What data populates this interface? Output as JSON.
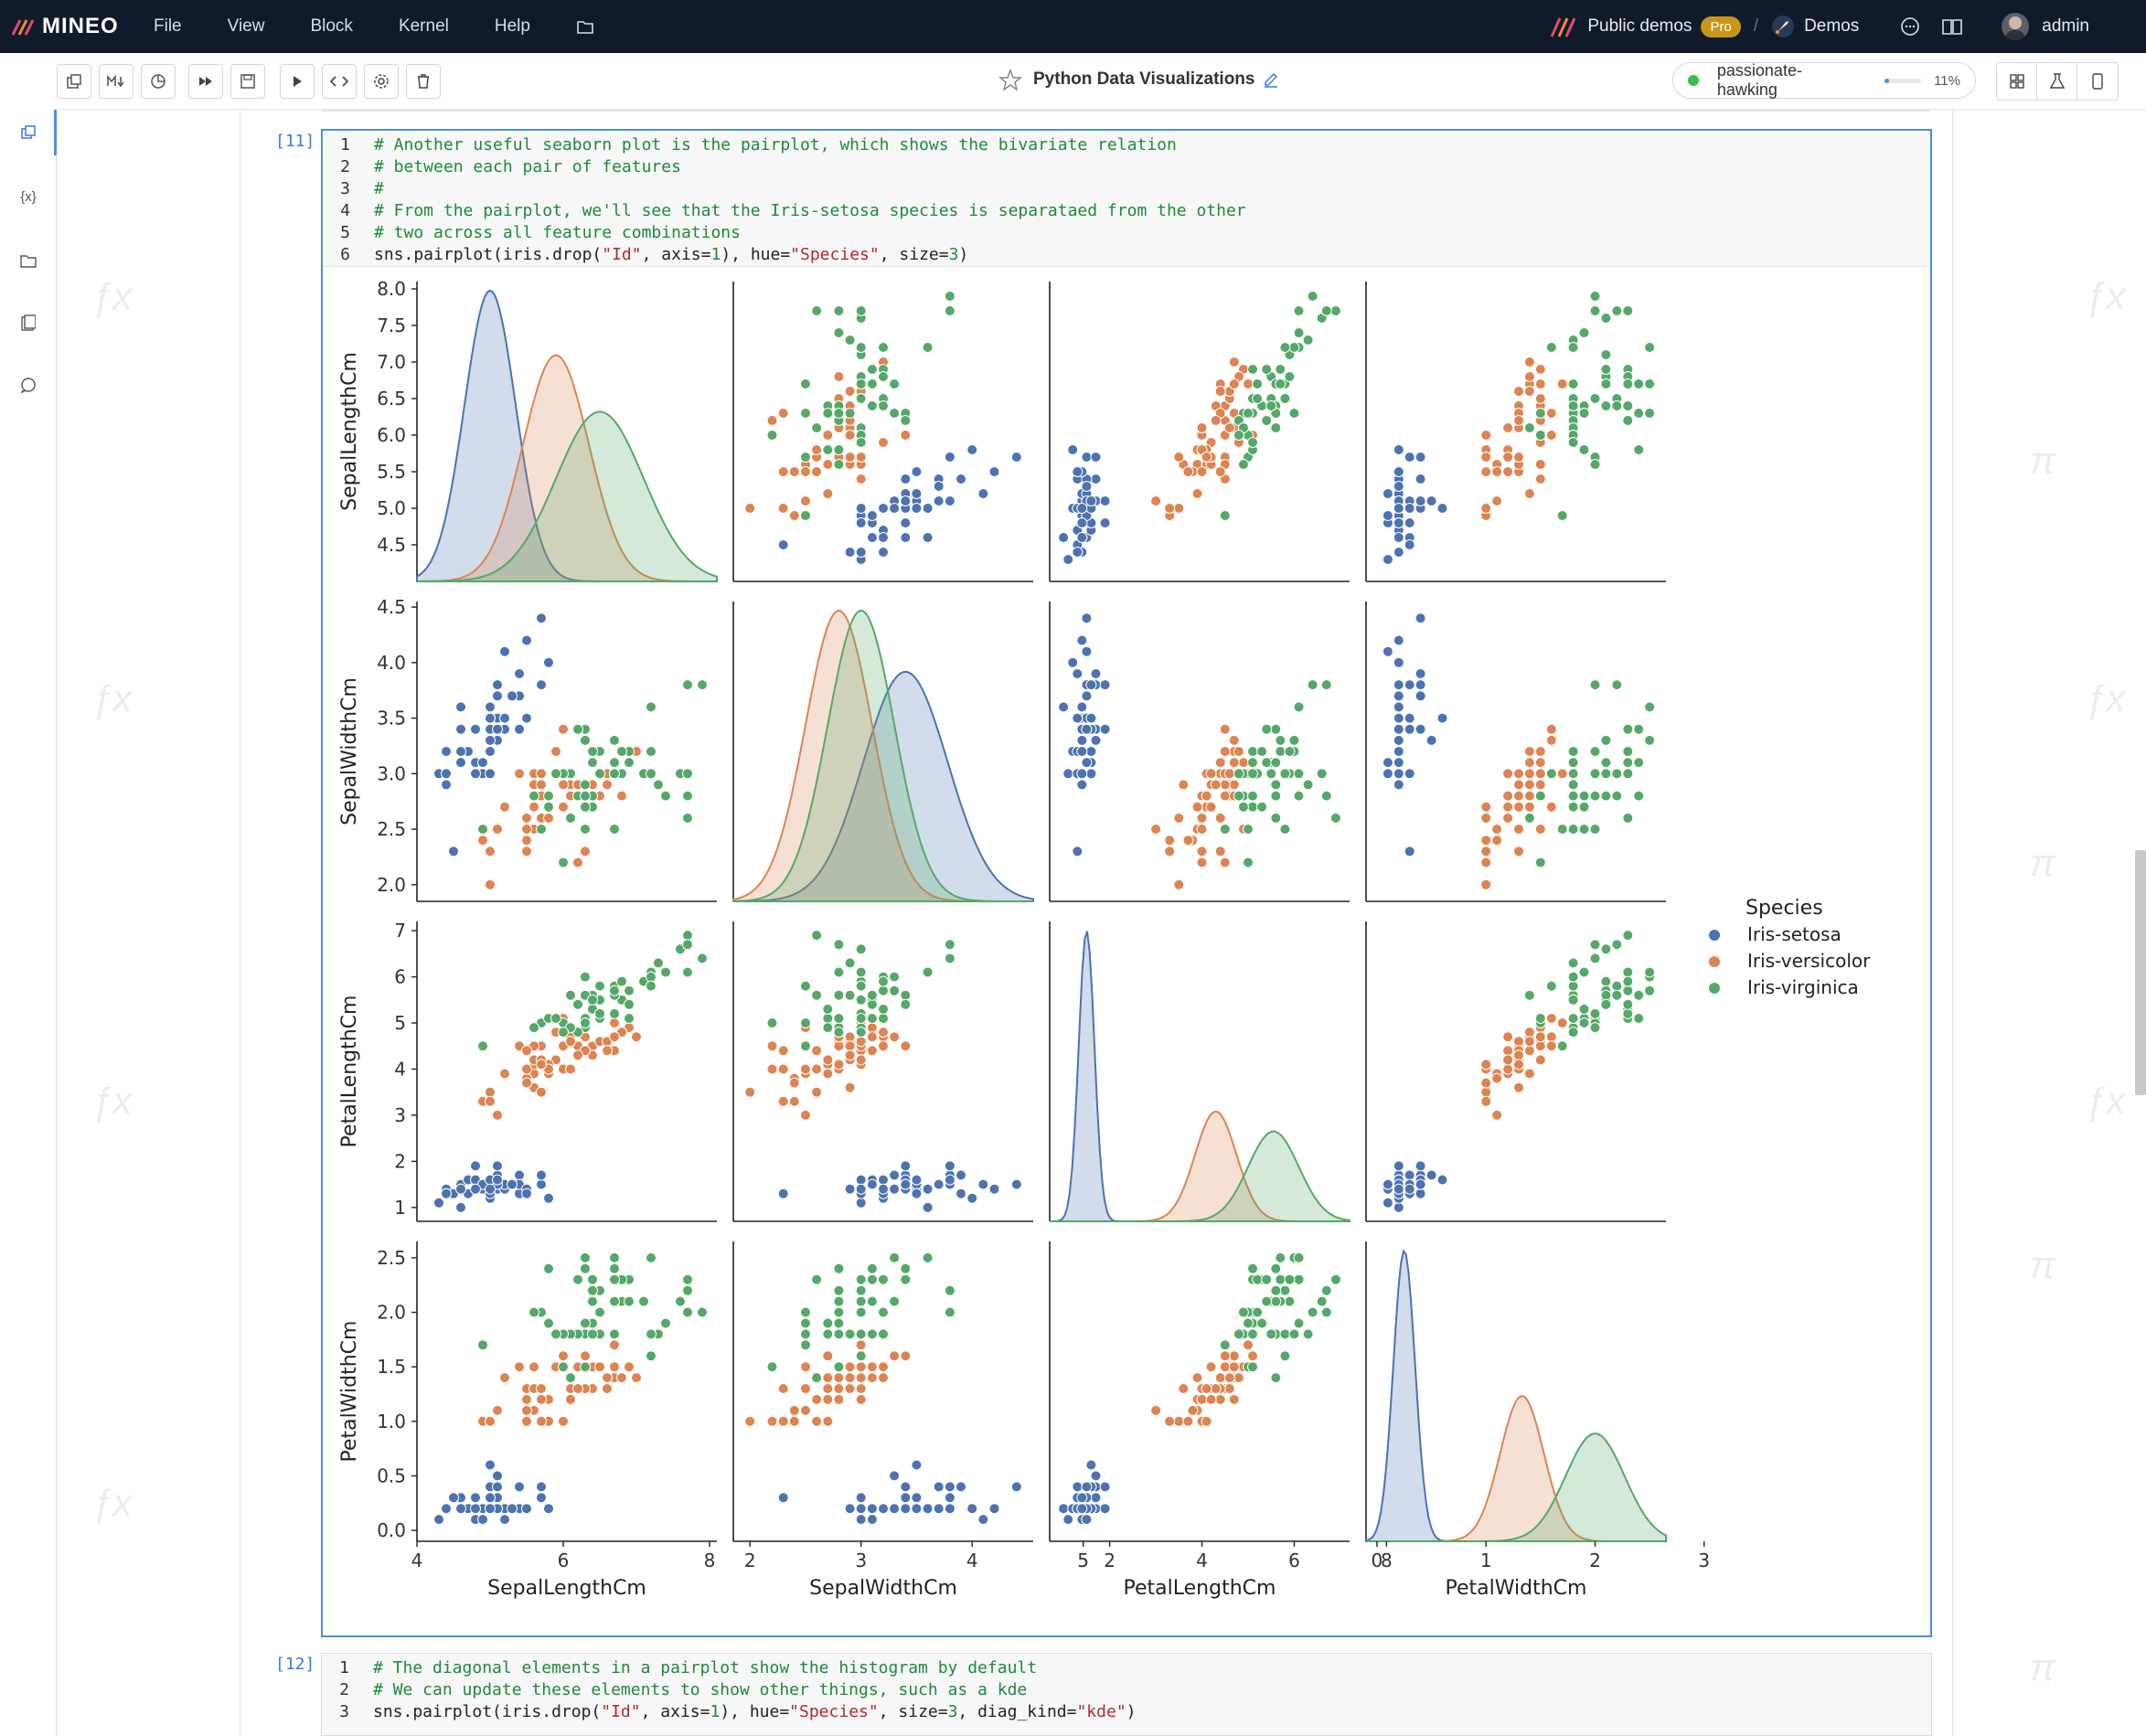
{
  "app": {
    "logo_text": "MINEO",
    "menu": [
      "File",
      "View",
      "Block",
      "Kernel",
      "Help"
    ],
    "workspace": "Public demos",
    "badge": "Pro",
    "project": "Demos",
    "user": "admin"
  },
  "notebook": {
    "title": "Python Data Visualizations",
    "kernel_name": "passionate-hawking",
    "kernel_usage": "11%"
  },
  "cell1": {
    "prompt": "[11]",
    "lines": [
      {
        "n": "1",
        "parts": [
          {
            "t": "# Another useful seaborn plot is the pairplot, which shows the bivariate relation",
            "c": "cmt"
          }
        ]
      },
      {
        "n": "2",
        "parts": [
          {
            "t": "# between each pair of features",
            "c": "cmt"
          }
        ]
      },
      {
        "n": "3",
        "parts": [
          {
            "t": "#",
            "c": "cmt"
          }
        ]
      },
      {
        "n": "4",
        "parts": [
          {
            "t": "# From the pairplot, we'll see that the Iris-setosa species is separataed from the other",
            "c": "cmt"
          }
        ]
      },
      {
        "n": "5",
        "parts": [
          {
            "t": "# two across all feature combinations",
            "c": "cmt"
          }
        ]
      },
      {
        "n": "6",
        "parts": [
          {
            "t": "sns.pairplot(iris.drop(",
            "c": ""
          },
          {
            "t": "\"Id\"",
            "c": "str"
          },
          {
            "t": ", axis=",
            "c": ""
          },
          {
            "t": "1",
            "c": "num"
          },
          {
            "t": "), hue=",
            "c": ""
          },
          {
            "t": "\"Species\"",
            "c": "str"
          },
          {
            "t": ", size=",
            "c": ""
          },
          {
            "t": "3",
            "c": "num"
          },
          {
            "t": ")",
            "c": ""
          }
        ]
      }
    ]
  },
  "cell2": {
    "prompt": "[12]",
    "lines": [
      {
        "n": "1",
        "parts": [
          {
            "t": "# The diagonal elements in a pairplot show the histogram by default",
            "c": "cmt"
          }
        ]
      },
      {
        "n": "2",
        "parts": [
          {
            "t": "# We can update these elements to show other things, such as a kde",
            "c": "cmt"
          }
        ]
      },
      {
        "n": "3",
        "parts": [
          {
            "t": "sns.pairplot(iris.drop(",
            "c": ""
          },
          {
            "t": "\"Id\"",
            "c": "str"
          },
          {
            "t": ", axis=",
            "c": ""
          },
          {
            "t": "1",
            "c": "num"
          },
          {
            "t": "), hue=",
            "c": ""
          },
          {
            "t": "\"Species\"",
            "c": "str"
          },
          {
            "t": ", size=",
            "c": ""
          },
          {
            "t": "3",
            "c": "num"
          },
          {
            "t": ", diag_kind=",
            "c": ""
          },
          {
            "t": "\"kde\"",
            "c": "str"
          },
          {
            "t": ")",
            "c": ""
          }
        ]
      }
    ]
  },
  "colors": {
    "setosa": "#4c72b0",
    "versicolor": "#dd8452",
    "virginica": "#55a868"
  },
  "chart_data": {
    "type": "scatter",
    "title": "",
    "variables": [
      "SepalLengthCm",
      "SepalWidthCm",
      "PetalLengthCm",
      "PetalWidthCm"
    ],
    "ranges": [
      [
        4.0,
        8.1
      ],
      [
        1.85,
        4.55
      ],
      [
        0.7,
        7.2
      ],
      [
        -0.1,
        2.65
      ]
    ],
    "y_ticks": [
      [
        "4.5",
        "5.0",
        "5.5",
        "6.0",
        "6.5",
        "7.0",
        "7.5",
        "8.0"
      ],
      [
        "2.0",
        "2.5",
        "3.0",
        "3.5",
        "4.0",
        "4.5"
      ],
      [
        "1",
        "2",
        "3",
        "4",
        "5",
        "6",
        "7"
      ],
      [
        "0.0",
        "0.5",
        "1.0",
        "1.5",
        "2.0",
        "2.5"
      ]
    ],
    "x_ticks": [
      [
        "4",
        "6",
        "8"
      ],
      [
        "2",
        "3",
        "4",
        "5"
      ],
      [
        "2",
        "4",
        "6",
        "8"
      ],
      [
        "0",
        "1",
        "2",
        "3"
      ]
    ],
    "legend_title": "Species",
    "legend_position": "right",
    "series": [
      {
        "name": "Iris-setosa",
        "kde_peak": [
          5.0,
          3.4,
          1.5,
          0.25
        ],
        "kde_sd": [
          0.35,
          0.38,
          0.17,
          0.1
        ],
        "points": [
          [
            5.1,
            3.5,
            1.4,
            0.2
          ],
          [
            4.9,
            3.0,
            1.4,
            0.2
          ],
          [
            4.7,
            3.2,
            1.3,
            0.2
          ],
          [
            4.6,
            3.1,
            1.5,
            0.2
          ],
          [
            5.0,
            3.6,
            1.4,
            0.2
          ],
          [
            5.4,
            3.9,
            1.7,
            0.4
          ],
          [
            4.6,
            3.4,
            1.4,
            0.3
          ],
          [
            5.0,
            3.4,
            1.5,
            0.2
          ],
          [
            4.4,
            2.9,
            1.4,
            0.2
          ],
          [
            4.9,
            3.1,
            1.5,
            0.1
          ],
          [
            5.4,
            3.7,
            1.5,
            0.2
          ],
          [
            4.8,
            3.4,
            1.6,
            0.2
          ],
          [
            4.8,
            3.0,
            1.4,
            0.1
          ],
          [
            4.3,
            3.0,
            1.1,
            0.1
          ],
          [
            5.8,
            4.0,
            1.2,
            0.2
          ],
          [
            5.7,
            4.4,
            1.5,
            0.4
          ],
          [
            5.4,
            3.9,
            1.3,
            0.4
          ],
          [
            5.1,
            3.5,
            1.4,
            0.3
          ],
          [
            5.7,
            3.8,
            1.7,
            0.3
          ],
          [
            5.1,
            3.8,
            1.5,
            0.3
          ],
          [
            5.4,
            3.4,
            1.7,
            0.2
          ],
          [
            5.1,
            3.7,
            1.5,
            0.4
          ],
          [
            4.6,
            3.6,
            1.0,
            0.2
          ],
          [
            5.1,
            3.3,
            1.7,
            0.5
          ],
          [
            4.8,
            3.4,
            1.9,
            0.2
          ],
          [
            5.0,
            3.0,
            1.6,
            0.2
          ],
          [
            5.0,
            3.4,
            1.6,
            0.4
          ],
          [
            5.2,
            3.5,
            1.5,
            0.2
          ],
          [
            5.2,
            3.4,
            1.4,
            0.2
          ],
          [
            4.7,
            3.2,
            1.6,
            0.2
          ],
          [
            4.8,
            3.1,
            1.6,
            0.2
          ],
          [
            5.4,
            3.4,
            1.5,
            0.4
          ],
          [
            5.2,
            4.1,
            1.5,
            0.1
          ],
          [
            5.5,
            4.2,
            1.4,
            0.2
          ],
          [
            4.9,
            3.1,
            1.5,
            0.1
          ],
          [
            5.0,
            3.2,
            1.2,
            0.2
          ],
          [
            5.5,
            3.5,
            1.3,
            0.2
          ],
          [
            4.4,
            3.0,
            1.3,
            0.2
          ],
          [
            5.1,
            3.4,
            1.5,
            0.2
          ],
          [
            5.0,
            3.5,
            1.3,
            0.3
          ],
          [
            4.5,
            2.3,
            1.3,
            0.3
          ],
          [
            4.4,
            3.2,
            1.3,
            0.2
          ],
          [
            5.0,
            3.5,
            1.6,
            0.6
          ],
          [
            5.1,
            3.8,
            1.9,
            0.4
          ],
          [
            4.8,
            3.0,
            1.4,
            0.3
          ],
          [
            5.1,
            3.8,
            1.6,
            0.2
          ],
          [
            4.6,
            3.2,
            1.4,
            0.2
          ],
          [
            5.3,
            3.7,
            1.5,
            0.2
          ],
          [
            5.0,
            3.3,
            1.4,
            0.2
          ]
        ]
      },
      {
        "name": "Iris-versicolor",
        "kde_peak": [
          5.9,
          2.8,
          4.3,
          1.33
        ],
        "kde_sd": [
          0.45,
          0.3,
          0.45,
          0.2
        ],
        "points": [
          [
            7.0,
            3.2,
            4.7,
            1.4
          ],
          [
            6.4,
            3.2,
            4.5,
            1.5
          ],
          [
            6.9,
            3.1,
            4.9,
            1.5
          ],
          [
            5.5,
            2.3,
            4.0,
            1.3
          ],
          [
            6.5,
            2.8,
            4.6,
            1.5
          ],
          [
            5.7,
            2.8,
            4.5,
            1.3
          ],
          [
            6.3,
            3.3,
            4.7,
            1.6
          ],
          [
            4.9,
            2.4,
            3.3,
            1.0
          ],
          [
            6.6,
            2.9,
            4.6,
            1.3
          ],
          [
            5.2,
            2.7,
            3.9,
            1.4
          ],
          [
            5.0,
            2.0,
            3.5,
            1.0
          ],
          [
            5.9,
            3.0,
            4.2,
            1.5
          ],
          [
            6.0,
            2.2,
            4.0,
            1.0
          ],
          [
            6.1,
            2.9,
            4.7,
            1.4
          ],
          [
            5.6,
            2.9,
            3.6,
            1.3
          ],
          [
            6.7,
            3.1,
            4.4,
            1.4
          ],
          [
            5.6,
            3.0,
            4.5,
            1.5
          ],
          [
            5.8,
            2.7,
            4.1,
            1.0
          ],
          [
            6.2,
            2.2,
            4.5,
            1.5
          ],
          [
            5.6,
            2.5,
            3.9,
            1.1
          ],
          [
            5.9,
            3.2,
            4.8,
            1.8
          ],
          [
            6.1,
            2.8,
            4.0,
            1.3
          ],
          [
            6.3,
            2.5,
            4.9,
            1.5
          ],
          [
            6.1,
            2.8,
            4.7,
            1.2
          ],
          [
            6.4,
            2.9,
            4.3,
            1.3
          ],
          [
            6.6,
            3.0,
            4.4,
            1.4
          ],
          [
            6.8,
            2.8,
            4.8,
            1.4
          ],
          [
            6.7,
            3.0,
            5.0,
            1.7
          ],
          [
            6.0,
            2.9,
            4.5,
            1.5
          ],
          [
            5.7,
            2.6,
            3.5,
            1.0
          ],
          [
            5.5,
            2.4,
            3.8,
            1.1
          ],
          [
            5.5,
            2.4,
            3.7,
            1.0
          ],
          [
            5.8,
            2.7,
            3.9,
            1.2
          ],
          [
            6.0,
            2.7,
            5.1,
            1.6
          ],
          [
            5.4,
            3.0,
            4.5,
            1.5
          ],
          [
            6.0,
            3.4,
            4.5,
            1.6
          ],
          [
            6.7,
            3.1,
            4.7,
            1.5
          ],
          [
            6.3,
            2.3,
            4.4,
            1.3
          ],
          [
            5.6,
            3.0,
            4.1,
            1.3
          ],
          [
            5.5,
            2.5,
            4.0,
            1.3
          ],
          [
            5.5,
            2.6,
            4.4,
            1.2
          ],
          [
            6.1,
            3.0,
            4.6,
            1.4
          ],
          [
            5.8,
            2.6,
            4.0,
            1.2
          ],
          [
            5.0,
            2.3,
            3.3,
            1.0
          ],
          [
            5.6,
            2.7,
            4.2,
            1.3
          ],
          [
            5.7,
            3.0,
            4.2,
            1.2
          ],
          [
            5.7,
            2.9,
            4.2,
            1.3
          ],
          [
            6.2,
            2.9,
            4.3,
            1.3
          ],
          [
            5.1,
            2.5,
            3.0,
            1.1
          ],
          [
            5.7,
            2.8,
            4.1,
            1.3
          ]
        ]
      },
      {
        "name": "Iris-virginica",
        "kde_peak": [
          6.5,
          3.0,
          5.55,
          2.0
        ],
        "kde_sd": [
          0.6,
          0.3,
          0.55,
          0.27
        ],
        "points": [
          [
            6.3,
            3.3,
            6.0,
            2.5
          ],
          [
            5.8,
            2.7,
            5.1,
            1.9
          ],
          [
            7.1,
            3.0,
            5.9,
            2.1
          ],
          [
            6.3,
            2.9,
            5.6,
            1.8
          ],
          [
            6.5,
            3.0,
            5.8,
            2.2
          ],
          [
            7.6,
            3.0,
            6.6,
            2.1
          ],
          [
            4.9,
            2.5,
            4.5,
            1.7
          ],
          [
            7.3,
            2.9,
            6.3,
            1.8
          ],
          [
            6.7,
            2.5,
            5.8,
            1.8
          ],
          [
            7.2,
            3.6,
            6.1,
            2.5
          ],
          [
            6.5,
            3.2,
            5.1,
            2.0
          ],
          [
            6.4,
            2.7,
            5.3,
            1.9
          ],
          [
            6.8,
            3.0,
            5.5,
            2.1
          ],
          [
            5.7,
            2.5,
            5.0,
            2.0
          ],
          [
            5.8,
            2.8,
            5.1,
            2.4
          ],
          [
            6.4,
            3.2,
            5.3,
            2.3
          ],
          [
            6.5,
            3.0,
            5.5,
            1.8
          ],
          [
            7.7,
            3.8,
            6.7,
            2.2
          ],
          [
            7.7,
            2.6,
            6.9,
            2.3
          ],
          [
            6.0,
            2.2,
            5.0,
            1.5
          ],
          [
            6.9,
            3.2,
            5.7,
            2.3
          ],
          [
            5.6,
            2.8,
            4.9,
            2.0
          ],
          [
            7.7,
            2.8,
            6.7,
            2.0
          ],
          [
            6.3,
            2.7,
            4.9,
            1.8
          ],
          [
            6.7,
            3.3,
            5.7,
            2.1
          ],
          [
            7.2,
            3.2,
            6.0,
            1.8
          ],
          [
            6.2,
            2.8,
            4.8,
            1.8
          ],
          [
            6.1,
            3.0,
            4.9,
            1.8
          ],
          [
            6.4,
            2.8,
            5.6,
            2.1
          ],
          [
            7.2,
            3.0,
            5.8,
            1.6
          ],
          [
            7.4,
            2.8,
            6.1,
            1.9
          ],
          [
            7.9,
            3.8,
            6.4,
            2.0
          ],
          [
            6.4,
            2.8,
            5.6,
            2.2
          ],
          [
            6.3,
            2.8,
            5.1,
            1.5
          ],
          [
            6.1,
            2.6,
            5.6,
            1.4
          ],
          [
            7.7,
            3.0,
            6.1,
            2.3
          ],
          [
            6.3,
            3.4,
            5.6,
            2.4
          ],
          [
            6.4,
            3.1,
            5.5,
            1.8
          ],
          [
            6.0,
            3.0,
            4.8,
            1.8
          ],
          [
            6.9,
            3.1,
            5.4,
            2.1
          ],
          [
            6.7,
            3.1,
            5.6,
            2.4
          ],
          [
            6.9,
            3.1,
            5.1,
            2.3
          ],
          [
            6.8,
            3.2,
            5.9,
            2.3
          ],
          [
            6.7,
            3.3,
            5.7,
            2.5
          ],
          [
            6.7,
            3.0,
            5.2,
            2.3
          ],
          [
            6.3,
            2.5,
            5.0,
            1.9
          ],
          [
            6.5,
            3.0,
            5.2,
            2.0
          ],
          [
            6.2,
            3.4,
            5.4,
            2.3
          ],
          [
            5.9,
            3.0,
            5.1,
            1.8
          ]
        ]
      }
    ]
  }
}
